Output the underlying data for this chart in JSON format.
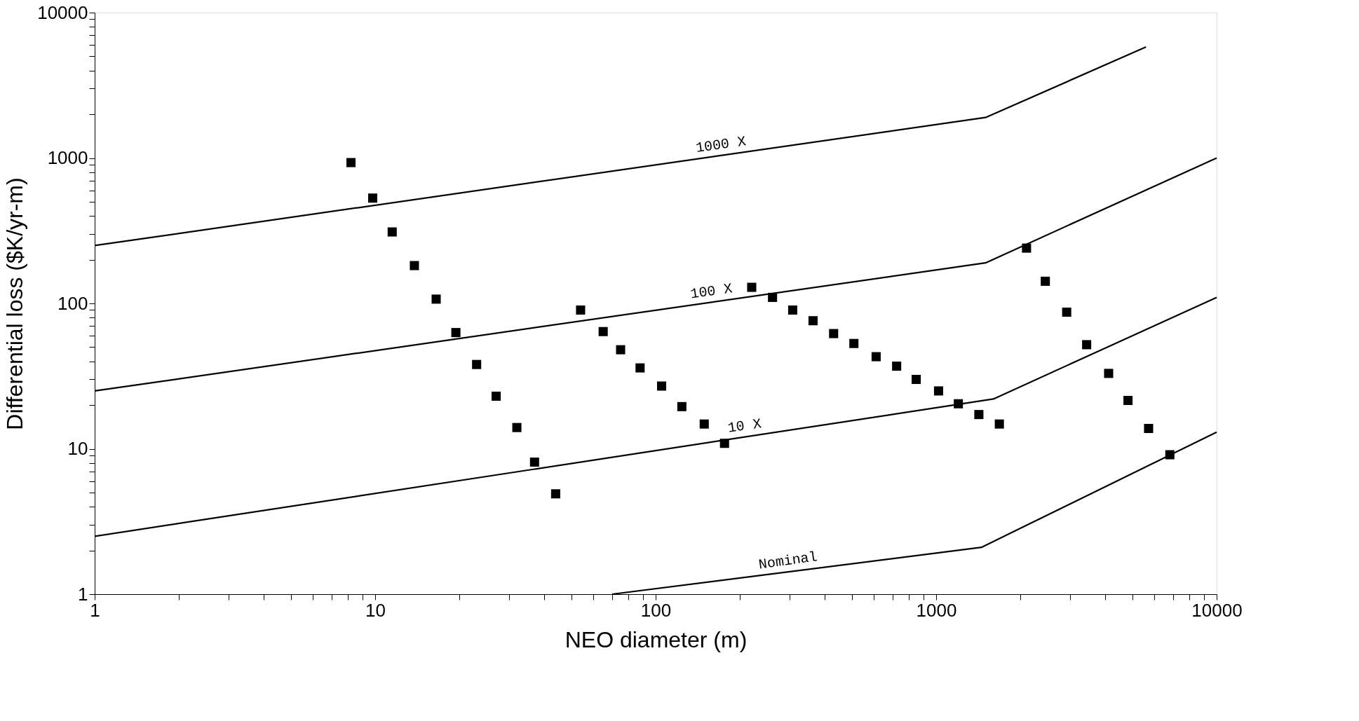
{
  "chart_data": {
    "type": "scatter",
    "xlabel": "NEO diameter (m)",
    "ylabel": "Differential loss ($K/yr-m)",
    "log": "xy",
    "grid": false,
    "marker": "square",
    "xlim": [
      1,
      10000
    ],
    "ylim": [
      1,
      10000
    ],
    "xticks": [
      1,
      {
        "value": 2,
        "label": null
      },
      {
        "value": 3,
        "label": null
      },
      {
        "value": 4,
        "label": null
      },
      {
        "value": 5,
        "label": null
      },
      {
        "value": 6,
        "label": null
      },
      {
        "value": 7,
        "label": null
      },
      {
        "value": 8,
        "label": null
      },
      {
        "value": 9,
        "label": null
      },
      10,
      {
        "value": 20,
        "label": null
      },
      {
        "value": 30,
        "label": null
      },
      {
        "value": 40,
        "label": null
      },
      {
        "value": 50,
        "label": null
      },
      {
        "value": 60,
        "label": null
      },
      {
        "value": 70,
        "label": null
      },
      {
        "value": 80,
        "label": null
      },
      {
        "value": 90,
        "label": null
      },
      100,
      {
        "value": 200,
        "label": null
      },
      {
        "value": 300,
        "label": null
      },
      {
        "value": 400,
        "label": null
      },
      {
        "value": 500,
        "label": null
      },
      {
        "value": 600,
        "label": null
      },
      {
        "value": 700,
        "label": null
      },
      {
        "value": 800,
        "label": null
      },
      {
        "value": 900,
        "label": null
      },
      1000,
      {
        "value": 2000,
        "label": null
      },
      {
        "value": 3000,
        "label": null
      },
      {
        "value": 4000,
        "label": null
      },
      {
        "value": 5000,
        "label": null
      },
      {
        "value": 6000,
        "label": null
      },
      {
        "value": 7000,
        "label": null
      },
      {
        "value": 8000,
        "label": null
      },
      {
        "value": 9000,
        "label": null
      },
      10000
    ],
    "yticks": [
      1,
      {
        "value": 2,
        "label": null
      },
      {
        "value": 3,
        "label": null
      },
      {
        "value": 4,
        "label": null
      },
      {
        "value": 5,
        "label": null
      },
      {
        "value": 6,
        "label": null
      },
      {
        "value": 7,
        "label": null
      },
      {
        "value": 8,
        "label": null
      },
      {
        "value": 9,
        "label": null
      },
      10,
      {
        "value": 20,
        "label": null
      },
      {
        "value": 30,
        "label": null
      },
      {
        "value": 40,
        "label": null
      },
      {
        "value": 50,
        "label": null
      },
      {
        "value": 60,
        "label": null
      },
      {
        "value": 70,
        "label": null
      },
      {
        "value": 80,
        "label": null
      },
      {
        "value": 90,
        "label": null
      },
      100,
      {
        "value": 200,
        "label": null
      },
      {
        "value": 300,
        "label": null
      },
      {
        "value": 400,
        "label": null
      },
      {
        "value": 500,
        "label": null
      },
      {
        "value": 600,
        "label": null
      },
      {
        "value": 700,
        "label": null
      },
      {
        "value": 800,
        "label": null
      },
      {
        "value": 900,
        "label": null
      },
      1000,
      {
        "value": 2000,
        "label": null
      },
      {
        "value": 3000,
        "label": null
      },
      {
        "value": 4000,
        "label": null
      },
      {
        "value": 5000,
        "label": null
      },
      {
        "value": 6000,
        "label": null
      },
      {
        "value": 7000,
        "label": null
      },
      {
        "value": 8000,
        "label": null
      },
      {
        "value": 9000,
        "label": null
      },
      10000
    ],
    "series": [
      {
        "type": "scatter",
        "color": "#000000",
        "x": [
          8.2,
          9.8,
          11.5,
          13.8,
          16.5,
          19.4,
          23,
          27,
          32,
          37,
          44,
          54,
          65,
          75,
          88,
          105,
          124,
          149,
          176,
          220,
          261,
          308,
          364,
          431,
          509,
          611,
          723,
          849,
          1020,
          1200,
          1420,
          1680,
          2100,
          2450,
          2920,
          3440,
          4120,
          4830,
          5720,
          6810
        ],
        "values": [
          930,
          530,
          310,
          182,
          107,
          63,
          38,
          23,
          14,
          8.1,
          4.9,
          90,
          64,
          48,
          36,
          27,
          19.5,
          14.8,
          10.9,
          129,
          110,
          90,
          76,
          62,
          53,
          43,
          37,
          30,
          25,
          20.4,
          17.2,
          14.8,
          240,
          142,
          87,
          52,
          33,
          21.5,
          13.8,
          9.1
        ]
      },
      {
        "type": "line",
        "color": "#000000",
        "marker": "none",
        "line_style": "solid",
        "x": [
          1,
          1500,
          5600
        ],
        "values": [
          250,
          1900,
          5800
        ]
      },
      {
        "type": "line",
        "color": "#000000",
        "marker": "none",
        "line_style": "solid",
        "x": [
          1,
          1500,
          10000
        ],
        "values": [
          25,
          190,
          1000
        ]
      },
      {
        "type": "line",
        "color": "#000000",
        "marker": "none",
        "line_style": "solid",
        "x": [
          1,
          1600,
          10000
        ],
        "values": [
          2.5,
          22,
          110
        ]
      },
      {
        "type": "line",
        "color": "#000000",
        "marker": "none",
        "line_style": "solid",
        "x": [
          70,
          1450,
          10000
        ],
        "values": [
          1,
          2.1,
          13
        ]
      }
    ],
    "annotations": [
      {
        "text": "1000 X",
        "x": 173,
        "y": 1040
      },
      {
        "text": "100 X",
        "x": 160,
        "y": 102
      },
      {
        "text": "10 X",
        "x": 210,
        "y": 12.1
      },
      {
        "text": "Nominal",
        "x": 300,
        "y": 1.43
      }
    ]
  }
}
